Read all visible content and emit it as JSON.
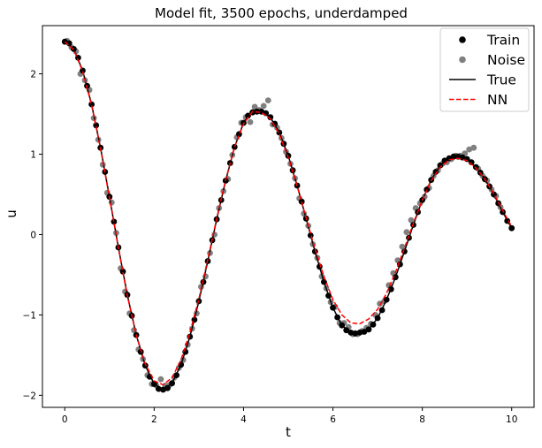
{
  "chart_data": {
    "type": "line",
    "title": "Model fit, 3500 epochs, underdamped",
    "xlabel": "t",
    "ylabel": "u",
    "xlim": [
      -0.5,
      10.5
    ],
    "ylim": [
      -2.15,
      2.6
    ],
    "xticks": [
      0,
      2,
      4,
      6,
      8,
      10
    ],
    "yticks": [
      -2,
      -1,
      0,
      1,
      2
    ],
    "xtick_labels": [
      "0",
      "2",
      "4",
      "6",
      "8",
      "10"
    ],
    "ytick_labels": [
      "−2",
      "−1",
      "0",
      "1",
      "2"
    ],
    "grid": false,
    "legend_position": "top-right",
    "legend": [
      {
        "label": "Train",
        "kind": "marker",
        "color": "#000000"
      },
      {
        "label": "Noise",
        "kind": "marker",
        "color": "#808080"
      },
      {
        "label": "True",
        "kind": "line",
        "color": "#000000"
      },
      {
        "label": "NN",
        "kind": "dashed",
        "color": "#ff0000"
      }
    ],
    "series": [
      {
        "name": "True",
        "style": "solid",
        "color": "#000000",
        "x": [
          0,
          0.2,
          0.4,
          0.6,
          0.8,
          1.0,
          1.2,
          1.4,
          1.6,
          1.8,
          2.0,
          2.2,
          2.4,
          2.6,
          2.8,
          3.0,
          3.2,
          3.4,
          3.6,
          3.8,
          4.0,
          4.2,
          4.4,
          4.6,
          4.8,
          5.0,
          5.2,
          5.4,
          5.6,
          5.8,
          6.0,
          6.2,
          6.4,
          6.6,
          6.8,
          7.0,
          7.2,
          7.4,
          7.6,
          7.8,
          8.0,
          8.2,
          8.4,
          8.6,
          8.8,
          9.0,
          9.2,
          9.4,
          9.6,
          9.8,
          10.0
        ],
        "values": [
          2.4,
          2.31,
          2.04,
          1.62,
          1.08,
          0.47,
          -0.16,
          -0.75,
          -1.25,
          -1.63,
          -1.86,
          -1.93,
          -1.85,
          -1.62,
          -1.27,
          -0.83,
          -0.33,
          0.19,
          0.67,
          1.09,
          1.39,
          1.55,
          1.53,
          1.46,
          1.27,
          0.98,
          0.61,
          0.2,
          -0.21,
          -0.59,
          -0.91,
          -1.13,
          -1.22,
          -1.22,
          -1.18,
          -1.04,
          -0.81,
          -0.53,
          -0.21,
          0.12,
          0.43,
          0.68,
          0.86,
          0.95,
          0.97,
          0.94,
          0.84,
          0.69,
          0.5,
          0.28,
          0.08
        ]
      },
      {
        "name": "NN",
        "style": "dashed",
        "color": "#ff0000",
        "x": [
          0,
          0.2,
          0.4,
          0.6,
          0.8,
          1.0,
          1.2,
          1.4,
          1.6,
          1.8,
          2.0,
          2.2,
          2.4,
          2.6,
          2.8,
          3.0,
          3.2,
          3.4,
          3.6,
          3.8,
          4.0,
          4.2,
          4.4,
          4.6,
          4.8,
          5.0,
          5.2,
          5.4,
          5.6,
          5.8,
          6.0,
          6.2,
          6.4,
          6.6,
          6.8,
          7.0,
          7.2,
          7.4,
          7.6,
          7.8,
          8.0,
          8.2,
          8.4,
          8.6,
          8.8,
          9.0,
          9.2,
          9.4,
          9.6,
          9.8,
          10.0
        ],
        "values": [
          2.4,
          2.3,
          2.03,
          1.61,
          1.07,
          0.46,
          -0.17,
          -0.76,
          -1.25,
          -1.61,
          -1.82,
          -1.87,
          -1.78,
          -1.56,
          -1.22,
          -0.8,
          -0.31,
          0.2,
          0.68,
          1.09,
          1.38,
          1.53,
          1.52,
          1.44,
          1.25,
          0.96,
          0.6,
          0.21,
          -0.18,
          -0.52,
          -0.81,
          -1.0,
          -1.1,
          -1.11,
          -1.05,
          -0.93,
          -0.73,
          -0.47,
          -0.17,
          0.14,
          0.43,
          0.67,
          0.84,
          0.93,
          0.95,
          0.92,
          0.83,
          0.69,
          0.51,
          0.3,
          0.1
        ]
      },
      {
        "name": "Train",
        "style": "marker",
        "color": "#000000",
        "x": [
          0,
          0.1,
          0.2,
          0.3,
          0.4,
          0.5,
          0.6,
          0.7,
          0.8,
          0.9,
          1.0,
          1.1,
          1.2,
          1.3,
          1.4,
          1.5,
          1.6,
          1.7,
          1.8,
          1.9,
          2.0,
          2.1,
          2.2,
          2.3,
          2.4,
          2.5,
          2.6,
          2.7,
          2.8,
          2.9,
          3.0,
          3.1,
          3.2,
          3.3,
          3.4,
          3.5,
          3.6,
          3.7,
          3.8,
          3.9,
          4.0,
          4.1,
          4.2,
          4.3,
          4.4,
          4.5,
          4.6,
          4.7,
          4.8,
          4.9,
          5.0,
          5.1,
          5.2,
          5.3,
          5.4,
          5.5,
          5.6,
          5.7,
          5.8,
          5.9,
          6.0,
          6.1,
          6.2,
          6.3,
          6.4,
          6.5,
          6.6,
          6.7,
          6.8,
          6.9,
          7.0,
          7.1,
          7.2,
          7.3,
          7.4,
          7.5,
          7.6,
          7.7,
          7.8,
          7.9,
          8.0,
          8.1,
          8.2,
          8.3,
          8.4,
          8.5,
          8.6,
          8.7,
          8.8,
          8.9,
          9.0,
          9.1,
          9.2,
          9.3,
          9.4,
          9.5,
          9.6,
          9.7,
          9.8,
          9.9,
          10.0
        ],
        "values": [
          2.4,
          2.38,
          2.31,
          2.2,
          2.04,
          1.85,
          1.62,
          1.36,
          1.08,
          0.78,
          0.47,
          0.16,
          -0.16,
          -0.46,
          -0.75,
          -1.01,
          -1.25,
          -1.46,
          -1.63,
          -1.77,
          -1.86,
          -1.92,
          -1.93,
          -1.91,
          -1.85,
          -1.75,
          -1.62,
          -1.46,
          -1.27,
          -1.06,
          -0.83,
          -0.59,
          -0.33,
          -0.07,
          0.19,
          0.43,
          0.67,
          0.89,
          1.09,
          1.25,
          1.39,
          1.48,
          1.52,
          1.53,
          1.53,
          1.51,
          1.46,
          1.38,
          1.27,
          1.13,
          0.98,
          0.8,
          0.61,
          0.41,
          0.2,
          -0.01,
          -0.21,
          -0.4,
          -0.59,
          -0.76,
          -0.91,
          -1.03,
          -1.13,
          -1.19,
          -1.22,
          -1.23,
          -1.22,
          -1.21,
          -1.18,
          -1.12,
          -1.04,
          -0.94,
          -0.81,
          -0.68,
          -0.53,
          -0.37,
          -0.21,
          -0.04,
          0.12,
          0.28,
          0.43,
          0.56,
          0.68,
          0.78,
          0.86,
          0.92,
          0.95,
          0.97,
          0.97,
          0.96,
          0.94,
          0.9,
          0.84,
          0.77,
          0.69,
          0.6,
          0.5,
          0.39,
          0.28,
          0.17,
          0.08
        ]
      },
      {
        "name": "Noise",
        "style": "marker",
        "color": "#808080",
        "x": [
          0.05,
          0.15,
          0.25,
          0.35,
          0.45,
          0.55,
          0.65,
          0.75,
          0.85,
          0.95,
          1.05,
          1.15,
          1.25,
          1.35,
          1.45,
          1.55,
          1.65,
          1.75,
          1.85,
          1.95,
          2.05,
          2.15,
          2.25,
          2.35,
          2.45,
          2.55,
          2.65,
          2.75,
          2.85,
          2.95,
          3.05,
          3.15,
          3.25,
          3.35,
          3.45,
          3.55,
          3.65,
          3.75,
          3.85,
          3.95,
          4.05,
          4.15,
          4.25,
          4.35,
          4.45,
          4.55,
          4.65,
          4.75,
          4.85,
          4.95,
          5.05,
          5.15,
          5.25,
          5.35,
          5.45,
          5.55,
          5.65,
          5.75,
          5.85,
          5.95,
          6.05,
          6.15,
          6.25,
          6.35,
          6.45,
          6.55,
          6.65,
          6.75,
          6.85,
          6.95,
          7.05,
          7.15,
          7.25,
          7.35,
          7.45,
          7.55,
          7.65,
          7.75,
          7.85,
          7.95,
          8.05,
          8.15,
          8.25,
          8.35,
          8.45,
          8.55,
          8.65,
          8.75,
          8.85,
          8.95,
          9.05,
          9.15,
          9.25,
          9.35,
          9.45,
          9.55,
          9.65,
          9.75
        ],
        "values": [
          2.41,
          2.33,
          2.28,
          2.0,
          1.92,
          1.8,
          1.45,
          1.18,
          0.87,
          0.52,
          0.4,
          0.02,
          -0.42,
          -0.71,
          -0.98,
          -1.19,
          -1.43,
          -1.55,
          -1.75,
          -1.86,
          -1.88,
          -1.8,
          -1.88,
          -1.87,
          -1.78,
          -1.66,
          -1.56,
          -1.37,
          -1.17,
          -0.98,
          -0.65,
          -0.52,
          -0.23,
          0.0,
          0.33,
          0.54,
          0.69,
          0.99,
          1.21,
          1.39,
          1.46,
          1.4,
          1.59,
          1.55,
          1.6,
          1.67,
          1.37,
          1.33,
          1.2,
          1.03,
          0.88,
          0.7,
          0.45,
          0.26,
          0.11,
          -0.12,
          -0.29,
          -0.52,
          -0.67,
          -0.84,
          -0.9,
          -1.1,
          -1.1,
          -1.15,
          -1.24,
          -1.24,
          -1.2,
          -1.16,
          -1.11,
          -1.0,
          -0.86,
          -0.83,
          -0.63,
          -0.48,
          -0.32,
          -0.15,
          0.03,
          0.18,
          0.33,
          0.39,
          0.47,
          0.58,
          0.73,
          0.8,
          0.88,
          0.9,
          0.94,
          0.98,
          0.98,
          1.01,
          1.06,
          1.08,
          0.82,
          0.73,
          0.67,
          0.56,
          0.48,
          0.34
        ]
      }
    ]
  }
}
